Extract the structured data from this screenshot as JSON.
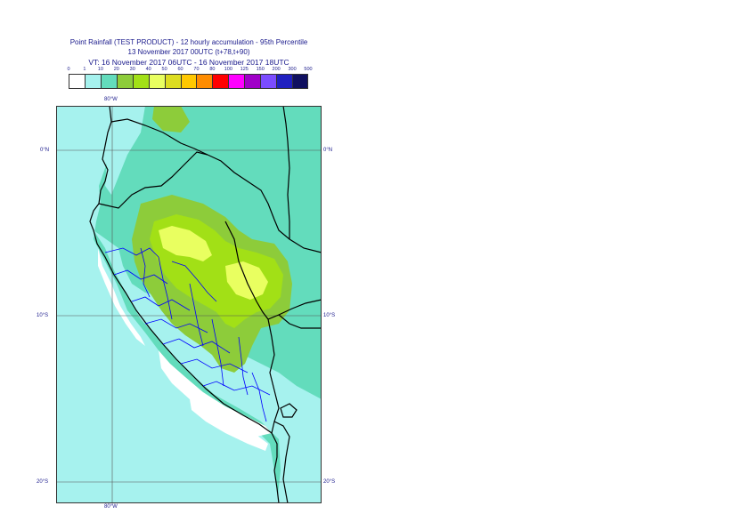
{
  "title": {
    "line1": "Point Rainfall (TEST PRODUCT) - 12 hourly accumulation - 95th Percentile",
    "line2": "13 November 2017 00UTC (t+78,t+90)",
    "line3": "VT: 16 November 2017 06UTC - 16 November 2017 18UTC"
  },
  "legend": {
    "ticks": [
      "0",
      "1",
      "10",
      "20",
      "30",
      "40",
      "50",
      "60",
      "70",
      "80",
      "100",
      "125",
      "150",
      "200",
      "300",
      "500"
    ],
    "colors": [
      "#ffffff",
      "#a6f2ee",
      "#63dcbc",
      "#8dcc3a",
      "#a2e016",
      "#e9ff60",
      "#dddd20",
      "#ffc800",
      "#ff8c00",
      "#ff0000",
      "#ff00ff",
      "#a000c8",
      "#7b4cff",
      "#2020c0",
      "#101060"
    ]
  },
  "map": {
    "lon_labels": {
      "top": "80°W",
      "bottom": "80°W"
    },
    "lat_labels": [
      "0°N",
      "10°S",
      "20°S"
    ],
    "colors": {
      "ocean": "#a6f2ee",
      "land_base": "#63dcbc",
      "dry": "#ffffff",
      "med_green": "#8dcc3a",
      "lime": "#a2e016",
      "yellow": "#e9ff60",
      "country_border": "#000000",
      "region_border": "#0000ff",
      "grid": "#555555"
    }
  }
}
